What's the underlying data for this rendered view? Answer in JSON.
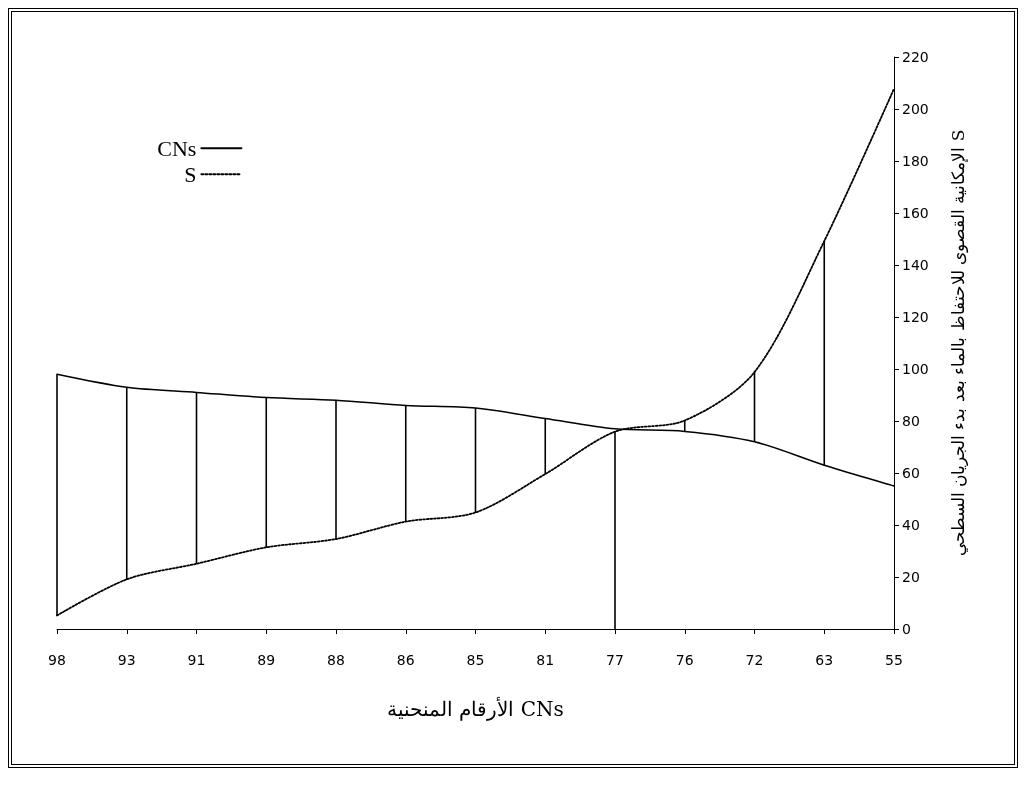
{
  "chart_data": {
    "type": "line",
    "xlabel": "الأرقام المنحنية CNs",
    "ylabel": "الإمكانية القصوى للاحتفاظ بالماء بعد بدء الجريان السطحي S",
    "categories": [
      "98",
      "93",
      "91",
      "89",
      "88",
      "86",
      "85",
      "81",
      "77",
      "76",
      "72",
      "63",
      "55"
    ],
    "series": [
      {
        "name": "CNs",
        "color": "#000000",
        "line_style": "solid",
        "values": [
          98,
          93,
          91,
          89,
          88,
          86,
          85,
          81,
          77,
          76,
          72,
          63,
          55
        ]
      },
      {
        "name": "S",
        "color": "#000000",
        "line_style": "dotted",
        "values": [
          5.2,
          19.1,
          25.1,
          31.4,
          34.6,
          41.3,
          44.8,
          59.6,
          75.9,
          80.2,
          98.8,
          149.2,
          207.8
        ],
        "errors": [
          [
            5.2,
            98
          ],
          [
            19.1,
            93
          ],
          [
            25.1,
            91
          ],
          [
            31.4,
            89
          ],
          [
            34.6,
            88
          ],
          [
            41.3,
            86
          ],
          [
            44.8,
            85
          ],
          [
            59.6,
            81
          ],
          [
            0,
            75.9
          ],
          [
            76,
            80.2
          ],
          [
            72,
            98.8
          ],
          [
            63,
            149.2
          ],
          null
        ]
      }
    ],
    "ylim": [
      0,
      220
    ],
    "yticks": [
      0,
      20,
      40,
      60,
      80,
      100,
      120,
      140,
      160,
      180,
      200,
      220
    ],
    "grid": false,
    "legend": "top left",
    "marker": "none"
  }
}
